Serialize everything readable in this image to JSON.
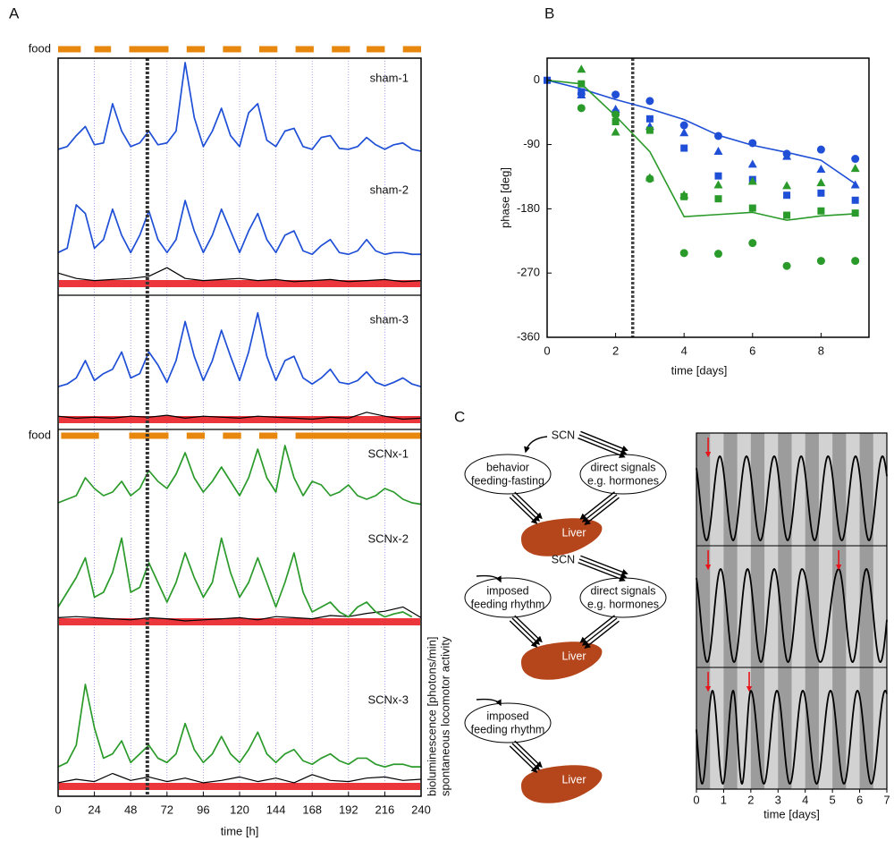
{
  "panel_labels": {
    "a": "A",
    "b": "B",
    "c": "C"
  },
  "chart_data": [
    {
      "type": "traces",
      "xlabel": "time [h]",
      "ylabel": "bioluminescence [photons/min]",
      "ylabel2": "spontaneous locomotor activity",
      "xlim": [
        0,
        240
      ],
      "xticks": [
        0,
        24,
        48,
        72,
        96,
        120,
        144,
        168,
        192,
        216,
        240
      ],
      "grid": true,
      "grid_color": "#8a8ae6",
      "event_x": 59,
      "ylim": [
        0,
        100
      ],
      "food_color": "#e8870e",
      "activity_color": "#000000",
      "activity_bar_color": "#e8141a",
      "food": [
        {
          "label": "food",
          "intervals": [
            [
              0,
              15
            ],
            [
              24,
              35
            ],
            [
              47,
              73
            ],
            [
              85,
              97
            ],
            [
              109,
              121
            ],
            [
              133,
              145
            ],
            [
              157,
              169
            ],
            [
              181,
              193
            ],
            [
              204,
              216
            ],
            [
              228,
              240
            ]
          ]
        },
        {
          "label": "food",
          "intervals": [
            [
              2,
              27
            ],
            [
              47,
              73
            ],
            [
              85,
              97
            ],
            [
              109,
              121
            ],
            [
              133,
              145
            ],
            [
              157,
              240
            ]
          ]
        }
      ],
      "x": [
        0,
        6,
        12,
        18,
        24,
        30,
        36,
        42,
        48,
        54,
        60,
        66,
        72,
        78,
        84,
        90,
        96,
        102,
        108,
        114,
        120,
        126,
        132,
        138,
        144,
        150,
        156,
        162,
        168,
        174,
        180,
        186,
        192,
        198,
        204,
        210,
        216,
        222,
        228,
        234,
        240
      ],
      "activity_x": [
        0,
        12,
        24,
        36,
        48,
        60,
        72,
        84,
        96,
        108,
        120,
        132,
        144,
        156,
        168,
        180,
        192,
        204,
        216,
        228,
        240
      ],
      "series": [
        {
          "name": "sham-1",
          "color": "#1f4fd6",
          "values": [
            5,
            8,
            20,
            30,
            10,
            12,
            55,
            25,
            8,
            12,
            25,
            10,
            12,
            25,
            100,
            40,
            8,
            25,
            50,
            20,
            8,
            45,
            55,
            15,
            8,
            25,
            28,
            8,
            5,
            18,
            20,
            6,
            5,
            8,
            18,
            10,
            5,
            10,
            12,
            5,
            3
          ]
        },
        {
          "name": "sham-2",
          "color": "#1f4fd6",
          "values": [
            10,
            15,
            65,
            55,
            15,
            25,
            60,
            30,
            10,
            30,
            58,
            25,
            10,
            25,
            70,
            35,
            10,
            30,
            60,
            35,
            10,
            35,
            55,
            25,
            10,
            30,
            35,
            12,
            8,
            18,
            25,
            10,
            8,
            12,
            25,
            12,
            8,
            10,
            10,
            8,
            8
          ],
          "activity": [
            70,
            45,
            35,
            40,
            45,
            55,
            95,
            45,
            35,
            40,
            45,
            35,
            40,
            30,
            35,
            40,
            30,
            35,
            40,
            30,
            35
          ]
        },
        {
          "name": "sham-3",
          "color": "#1f4fd6",
          "values": [
            5,
            8,
            15,
            35,
            12,
            20,
            25,
            45,
            15,
            20,
            45,
            30,
            10,
            35,
            80,
            40,
            12,
            35,
            70,
            40,
            12,
            45,
            90,
            40,
            12,
            35,
            40,
            15,
            8,
            15,
            25,
            10,
            8,
            12,
            22,
            10,
            6,
            10,
            15,
            8,
            5
          ],
          "activity": [
            40,
            30,
            35,
            30,
            40,
            35,
            45,
            30,
            40,
            35,
            30,
            40,
            35,
            30,
            25,
            35,
            30,
            60,
            40,
            25,
            30
          ]
        },
        {
          "name": "SCNx-1",
          "color": "#2a9a2a",
          "values": [
            10,
            15,
            20,
            45,
            30,
            20,
            25,
            40,
            20,
            30,
            55,
            40,
            30,
            50,
            80,
            45,
            25,
            40,
            60,
            40,
            20,
            45,
            85,
            45,
            25,
            90,
            45,
            20,
            40,
            35,
            20,
            25,
            35,
            20,
            15,
            20,
            30,
            25,
            15,
            10,
            8
          ]
        },
        {
          "name": "SCNx-2",
          "color": "#2a9a2a",
          "values": [
            15,
            30,
            45,
            65,
            25,
            30,
            50,
            85,
            30,
            35,
            60,
            40,
            20,
            40,
            70,
            45,
            25,
            40,
            85,
            50,
            25,
            40,
            65,
            40,
            15,
            40,
            70,
            30,
            10,
            15,
            20,
            10,
            5,
            15,
            20,
            10,
            5,
            8,
            10,
            5,
            null
          ],
          "activity": [
            40,
            45,
            40,
            35,
            30,
            40,
            35,
            25,
            30,
            35,
            40,
            30,
            45,
            40,
            35,
            50,
            45,
            60,
            70,
            90,
            40
          ]
        },
        {
          "name": "SCNx-3",
          "color": "#2a9a2a",
          "values": [
            5,
            10,
            30,
            100,
            50,
            15,
            20,
            35,
            10,
            20,
            30,
            15,
            10,
            20,
            55,
            25,
            10,
            20,
            40,
            20,
            10,
            25,
            45,
            20,
            10,
            20,
            25,
            12,
            8,
            15,
            20,
            12,
            8,
            15,
            15,
            8,
            5,
            8,
            8,
            5,
            5
          ],
          "activity": [
            35,
            50,
            40,
            75,
            45,
            60,
            40,
            55,
            35,
            45,
            60,
            40,
            55,
            35,
            70,
            45,
            40,
            55,
            60,
            45,
            50
          ]
        }
      ]
    },
    {
      "type": "scatter",
      "xlabel": "time [days]",
      "ylabel": "phase [deg]",
      "xlim": [
        0,
        9.4
      ],
      "xticks": [
        0,
        2,
        4,
        6,
        8
      ],
      "ylim": [
        -360,
        31
      ],
      "yticks": [
        0,
        -90,
        -180,
        -270,
        -360
      ],
      "event_x": 2.5,
      "series": [
        {
          "marker": "circle",
          "color": "#1f4fd6",
          "x": [
            1,
            2,
            3,
            4,
            5,
            6,
            7,
            8,
            9
          ],
          "values": [
            -19,
            -20,
            -29,
            -63,
            -78,
            -88,
            -103,
            -97,
            -110
          ]
        },
        {
          "marker": "triangle",
          "color": "#1f4fd6",
          "x": [
            1,
            2,
            3,
            4,
            5,
            6,
            7,
            8,
            9
          ],
          "values": [
            -21,
            -41,
            -65,
            -74,
            -100,
            -118,
            -107,
            -125,
            -147
          ]
        },
        {
          "marker": "square",
          "color": "#1f4fd6",
          "x": [
            0,
            1,
            2,
            3,
            4,
            5,
            6,
            7,
            8,
            9
          ],
          "values": [
            0,
            -16,
            -46,
            -54,
            -95,
            -134,
            -139,
            -161,
            -158,
            -168
          ]
        },
        {
          "marker": "line",
          "color": "#1f4fd6",
          "x": [
            0,
            1,
            2,
            3,
            4,
            5,
            6,
            7,
            8,
            9
          ],
          "values": [
            0,
            -12,
            -27,
            -40,
            -55,
            -77,
            -91,
            -101,
            -112,
            -145
          ]
        },
        {
          "marker": "circle",
          "color": "#2a9a2a",
          "x": [
            1,
            2,
            3,
            4,
            5,
            6,
            7,
            8,
            9
          ],
          "values": [
            -39,
            -48,
            -138,
            -242,
            -243,
            -228,
            -260,
            -253,
            -253
          ]
        },
        {
          "marker": "triangle",
          "color": "#2a9a2a",
          "x": [
            1,
            2,
            3,
            4,
            5,
            6,
            7,
            8,
            9
          ],
          "values": [
            15,
            -73,
            -137,
            -161,
            -147,
            -142,
            -148,
            -144,
            -124
          ]
        },
        {
          "marker": "square",
          "color": "#2a9a2a",
          "x": [
            1,
            2,
            3,
            4,
            5,
            6,
            7,
            8,
            9
          ],
          "values": [
            -5,
            -58,
            -70,
            -163,
            -166,
            -179,
            -189,
            -183,
            -186
          ]
        },
        {
          "marker": "line",
          "color": "#2a9a2a",
          "x": [
            0,
            1,
            2,
            3,
            4,
            5,
            6,
            7,
            8,
            9
          ],
          "values": [
            0,
            -5,
            -50,
            -100,
            -191,
            -188,
            -185,
            -196,
            -190,
            -187
          ]
        }
      ]
    },
    {
      "type": "oscillation",
      "xlabel": "time [days]",
      "xlim": [
        0,
        7
      ],
      "xticks": [
        0,
        1,
        2,
        3,
        4,
        5,
        6,
        7
      ],
      "arrow_color": "#e8141a",
      "rows": [
        {
          "peaks": [
            0.86,
            1.84,
            2.86,
            3.85,
            4.84,
            5.85,
            6.84
          ],
          "arrows": [
            0.43
          ]
        },
        {
          "peaks": [
            0.89,
            1.88,
            2.86,
            3.88,
            5.23,
            6.25
          ],
          "arrows": [
            0.43,
            5.23
          ]
        },
        {
          "peaks": [
            0.59,
            1.35,
            2.0,
            2.96,
            3.91,
            4.93,
            5.92,
            6.94
          ],
          "arrows": [
            0.43,
            1.94
          ]
        }
      ]
    }
  ],
  "diagram": {
    "rows": [
      {
        "scn": "SCN",
        "left": [
          "behavior",
          "feeding-fasting"
        ],
        "right": [
          "direct signals",
          "e.g. hormones"
        ],
        "organ": "Liver"
      },
      {
        "scn": "SCN",
        "left": [
          "imposed",
          "feeding rhythm"
        ],
        "right": [
          "direct signals",
          "e.g. hormones"
        ],
        "organ": "Liver"
      },
      {
        "left": [
          "imposed",
          "feeding rhythm"
        ],
        "organ": "Liver"
      }
    ]
  }
}
